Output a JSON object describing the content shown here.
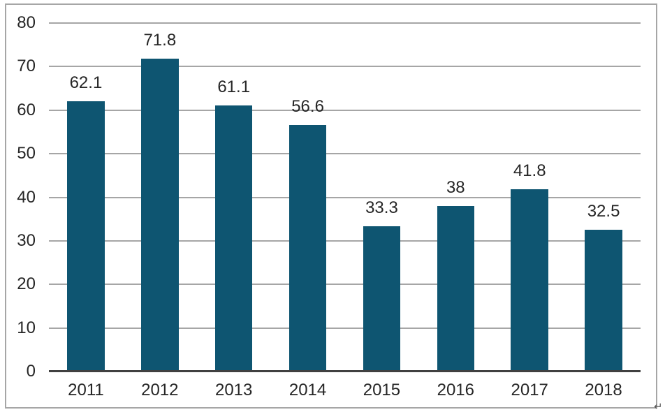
{
  "chart_data": {
    "type": "bar",
    "title": "",
    "xlabel": "",
    "ylabel": "",
    "categories": [
      "2011",
      "2012",
      "2013",
      "2014",
      "2015",
      "2016",
      "2017",
      "2018"
    ],
    "values": [
      62.1,
      71.8,
      61.1,
      56.6,
      33.3,
      38,
      41.8,
      32.5
    ],
    "value_labels": [
      "62.1",
      "71.8",
      "61.1",
      "56.6",
      "33.3",
      "38",
      "41.8",
      "32.5"
    ],
    "ylim": [
      0,
      80
    ],
    "yticks": [
      0,
      10,
      20,
      30,
      40,
      50,
      60,
      70,
      80
    ],
    "grid": "horizontal",
    "legend_position": "none",
    "colors": {
      "bar": "#0e5571",
      "text": "#262626",
      "gridline": "#a6a6a6",
      "axis_line": "#404040",
      "border": "#a6a6a6",
      "background": "#ffffff"
    }
  },
  "artifacts": {
    "return_mark": "↵"
  }
}
